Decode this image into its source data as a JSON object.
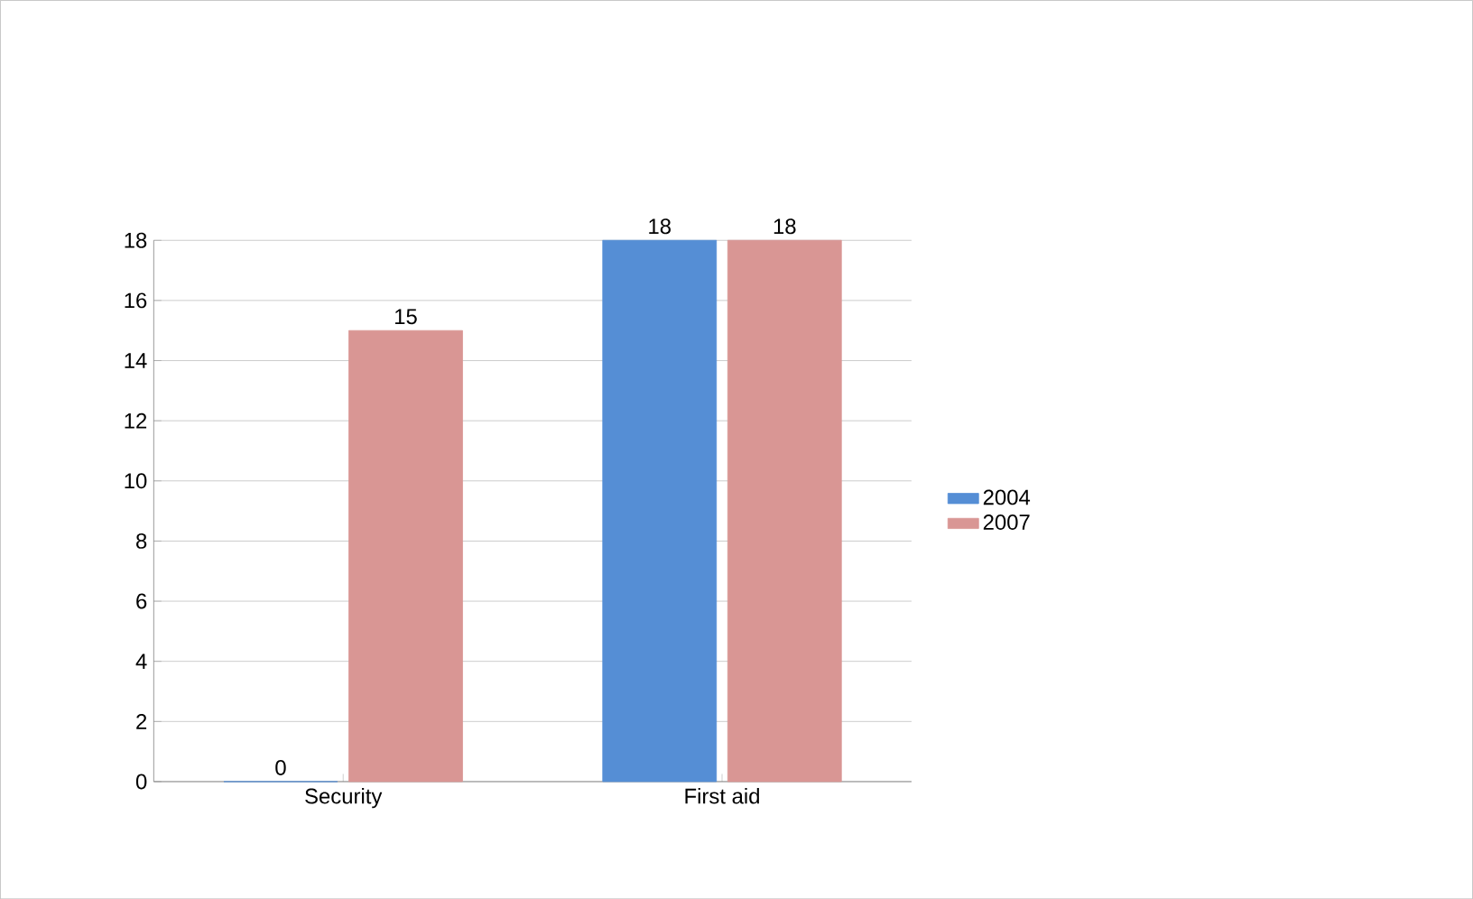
{
  "chart_data": {
    "type": "bar",
    "categories": [
      "Security",
      "First aid"
    ],
    "series": [
      {
        "name": "2004",
        "color": "#558ed5",
        "values": [
          0,
          18
        ]
      },
      {
        "name": "2007",
        "color": "#d99694",
        "values": [
          15,
          18
        ]
      }
    ],
    "ylim": [
      0,
      18
    ],
    "yticks": [
      0,
      2,
      4,
      6,
      8,
      10,
      12,
      14,
      16,
      18
    ],
    "grid": "y",
    "legend": "right",
    "data_labels": true
  }
}
